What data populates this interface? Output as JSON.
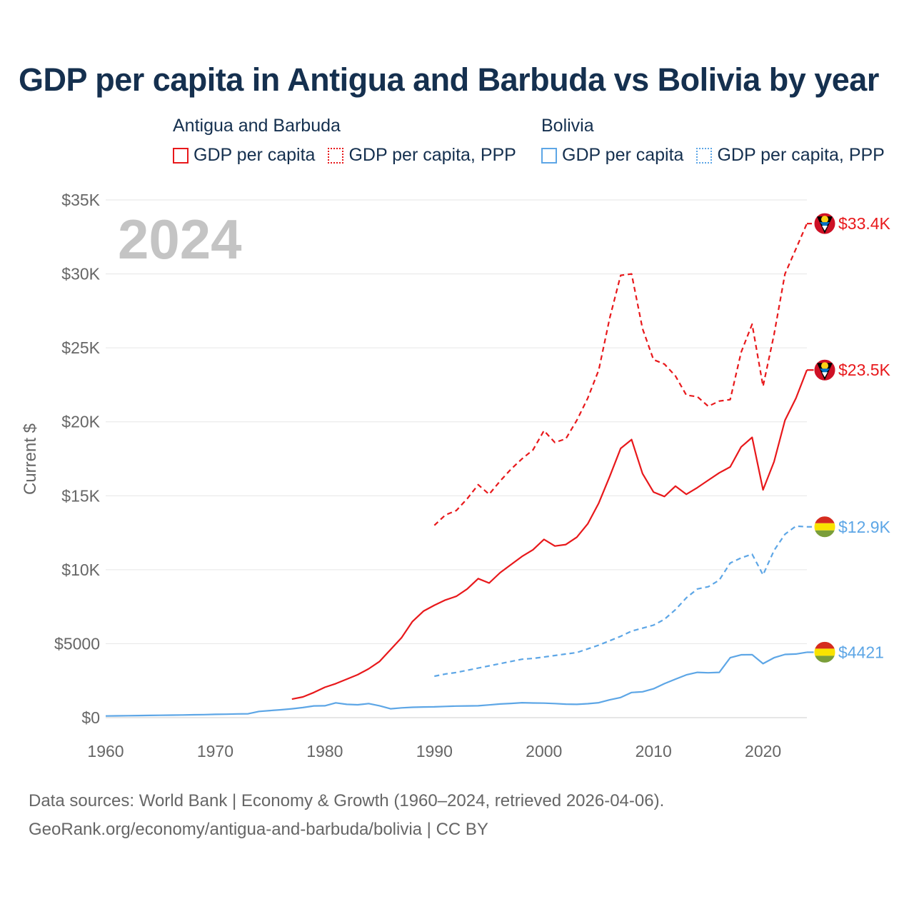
{
  "chart_data": {
    "type": "line",
    "title": "GDP per capita in Antigua and Barbuda vs Bolivia by year",
    "ylabel": "Current $",
    "xlabel": "",
    "xlim": [
      1960,
      2024
    ],
    "ylim": [
      0,
      35000
    ],
    "x_ticks": [
      1960,
      1970,
      1980,
      1990,
      2000,
      2010,
      2020
    ],
    "x_tick_labels": [
      "1960",
      "1970",
      "1980",
      "1990",
      "2000",
      "2010",
      "2020"
    ],
    "y_ticks": [
      0,
      5000,
      10000,
      15000,
      20000,
      25000,
      30000,
      35000
    ],
    "y_tick_labels": [
      "$0",
      "$5000",
      "$10K",
      "$15K",
      "$20K",
      "$25K",
      "$30K",
      "$35K"
    ],
    "year_label": "2024",
    "legend": [
      {
        "group": "Antigua and Barbuda",
        "items": [
          "GDP per capita",
          "GDP per capita, PPP"
        ]
      },
      {
        "group": "Bolivia",
        "items": [
          "GDP per capita",
          "GDP per capita, PPP"
        ]
      }
    ],
    "series": [
      {
        "name": "Antigua and Barbuda — GDP per capita",
        "country": "antigua",
        "color": "#e8181b",
        "dash": "solid",
        "end_label": "$23.5K",
        "x": [
          1977,
          1978,
          1979,
          1980,
          1981,
          1982,
          1983,
          1984,
          1985,
          1986,
          1987,
          1988,
          1989,
          1990,
          1991,
          1992,
          1993,
          1994,
          1995,
          1996,
          1997,
          1998,
          1999,
          2000,
          2001,
          2002,
          2003,
          2004,
          2005,
          2006,
          2007,
          2008,
          2009,
          2010,
          2011,
          2012,
          2013,
          2014,
          2015,
          2016,
          2017,
          2018,
          2019,
          2020,
          2021,
          2022,
          2023,
          2024
        ],
        "values": [
          1250,
          1400,
          1700,
          2050,
          2300,
          2600,
          2900,
          3300,
          3800,
          4600,
          5400,
          6500,
          7200,
          7600,
          7950,
          8200,
          8700,
          9400,
          9100,
          9800,
          10350,
          10900,
          11350,
          12050,
          11600,
          11700,
          12200,
          13100,
          14500,
          16300,
          18200,
          18800,
          16500,
          15250,
          14950,
          15650,
          15100,
          15550,
          16050,
          16550,
          16950,
          18300,
          18950,
          15400,
          17300,
          20100,
          21600,
          23500
        ]
      },
      {
        "name": "Antigua and Barbuda — GDP per capita, PPP",
        "country": "antigua",
        "color": "#e8181b",
        "dash": "dashed",
        "end_label": "$33.4K",
        "x": [
          1990,
          1991,
          1992,
          1993,
          1994,
          1995,
          1996,
          1997,
          1998,
          1999,
          2000,
          2001,
          2002,
          2003,
          2004,
          2005,
          2006,
          2007,
          2008,
          2009,
          2010,
          2011,
          2012,
          2013,
          2014,
          2015,
          2016,
          2017,
          2018,
          2019,
          2020,
          2021,
          2022,
          2023,
          2024
        ],
        "values": [
          13000,
          13700,
          14000,
          14800,
          15750,
          15100,
          16000,
          16800,
          17500,
          18100,
          19400,
          18600,
          18850,
          20100,
          21600,
          23500,
          27000,
          29900,
          30000,
          26300,
          24200,
          23900,
          23100,
          21800,
          21700,
          21050,
          21400,
          21500,
          24700,
          26600,
          22400,
          25900,
          30000,
          31700,
          33400
        ]
      },
      {
        "name": "Bolivia — GDP per capita",
        "country": "bolivia",
        "color": "#5da6e6",
        "dash": "solid",
        "end_label": "$4421",
        "x": [
          1960,
          1961,
          1962,
          1963,
          1964,
          1965,
          1966,
          1967,
          1968,
          1969,
          1970,
          1971,
          1972,
          1973,
          1974,
          1975,
          1976,
          1977,
          1978,
          1979,
          1980,
          1981,
          1982,
          1983,
          1984,
          1985,
          1986,
          1987,
          1988,
          1989,
          1990,
          1991,
          1992,
          1993,
          1994,
          1995,
          1996,
          1997,
          1998,
          1999,
          2000,
          2001,
          2002,
          2003,
          2004,
          2005,
          2006,
          2007,
          2008,
          2009,
          2010,
          2011,
          2012,
          2013,
          2014,
          2015,
          2016,
          2017,
          2018,
          2019,
          2020,
          2021,
          2022,
          2023,
          2024
        ],
        "values": [
          110,
          120,
          130,
          140,
          150,
          160,
          170,
          180,
          195,
          205,
          220,
          230,
          250,
          260,
          420,
          480,
          530,
          600,
          680,
          790,
          800,
          1000,
          900,
          870,
          950,
          800,
          600,
          660,
          700,
          720,
          730,
          760,
          780,
          790,
          800,
          860,
          920,
          960,
          1010,
          990,
          980,
          950,
          910,
          900,
          940,
          1010,
          1200,
          1360,
          1700,
          1750,
          1950,
          2300,
          2600,
          2890,
          3060,
          3030,
          3060,
          4050,
          4250,
          4260,
          3650,
          4050,
          4270,
          4300,
          4421
        ]
      },
      {
        "name": "Bolivia — GDP per capita, PPP",
        "country": "bolivia",
        "color": "#5da6e6",
        "dash": "dashed",
        "end_label": "$12.9K",
        "x": [
          1990,
          1991,
          1992,
          1993,
          1994,
          1995,
          1996,
          1997,
          1998,
          1999,
          2000,
          2001,
          2002,
          2003,
          2004,
          2005,
          2006,
          2007,
          2008,
          2009,
          2010,
          2011,
          2012,
          2013,
          2014,
          2015,
          2016,
          2017,
          2018,
          2019,
          2020,
          2021,
          2022,
          2023,
          2024
        ],
        "values": [
          2800,
          2950,
          3050,
          3200,
          3350,
          3500,
          3650,
          3800,
          3950,
          4000,
          4100,
          4200,
          4300,
          4400,
          4650,
          4900,
          5200,
          5500,
          5850,
          6050,
          6250,
          6650,
          7300,
          8100,
          8700,
          8850,
          9300,
          10450,
          10800,
          11050,
          9650,
          11300,
          12400,
          12950,
          12900
        ]
      }
    ]
  },
  "source_line_1": "Data sources: World Bank | Economy & Growth (1960–2024, retrieved 2026-04-06).",
  "source_line_2": "GeoRank.org/economy/antigua-and-barbuda/bolivia | CC BY"
}
